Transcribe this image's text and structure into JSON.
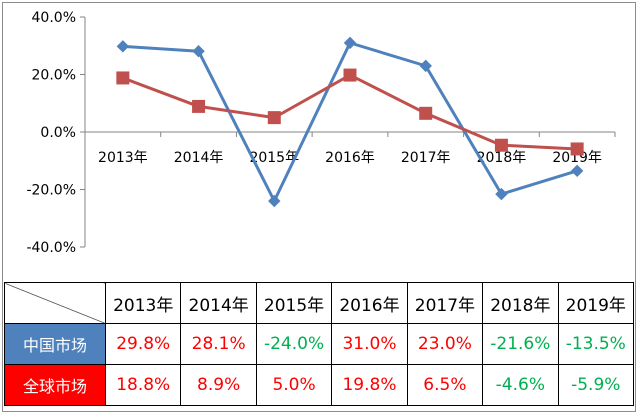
{
  "chart_data": {
    "type": "line",
    "categories": [
      "2013年",
      "2014年",
      "2015年",
      "2016年",
      "2017年",
      "2018年",
      "2019年"
    ],
    "ylim": [
      -40,
      40
    ],
    "yticks": [
      "40.0%",
      "20.0%",
      "0.0%",
      "-20.0%",
      "-40.0%"
    ],
    "ytick_values": [
      40,
      20,
      0,
      -20,
      -40
    ],
    "grid": false,
    "series": [
      {
        "name": "中国市场",
        "color": "#4f81bd",
        "marker": "diamond",
        "values": [
          29.8,
          28.1,
          -24.0,
          31.0,
          23.0,
          -21.6,
          -13.5
        ],
        "labels": [
          "29.8%",
          "28.1%",
          "-24.0%",
          "31.0%",
          "23.0%",
          "-21.6%",
          "-13.5%"
        ]
      },
      {
        "name": "全球市场",
        "color": "#c0504d",
        "marker": "square",
        "values": [
          18.8,
          8.9,
          5.0,
          19.8,
          6.5,
          -4.6,
          -5.9
        ],
        "labels": [
          "18.8%",
          "8.9%",
          "5.0%",
          "19.8%",
          "6.5%",
          "-4.6%",
          "-5.9%"
        ]
      }
    ]
  },
  "table": {
    "label_bg": {
      "china": "#4f81bd",
      "global": "#ff0000"
    },
    "positive_color": "#ff0000",
    "negative_color": "#00b050"
  }
}
